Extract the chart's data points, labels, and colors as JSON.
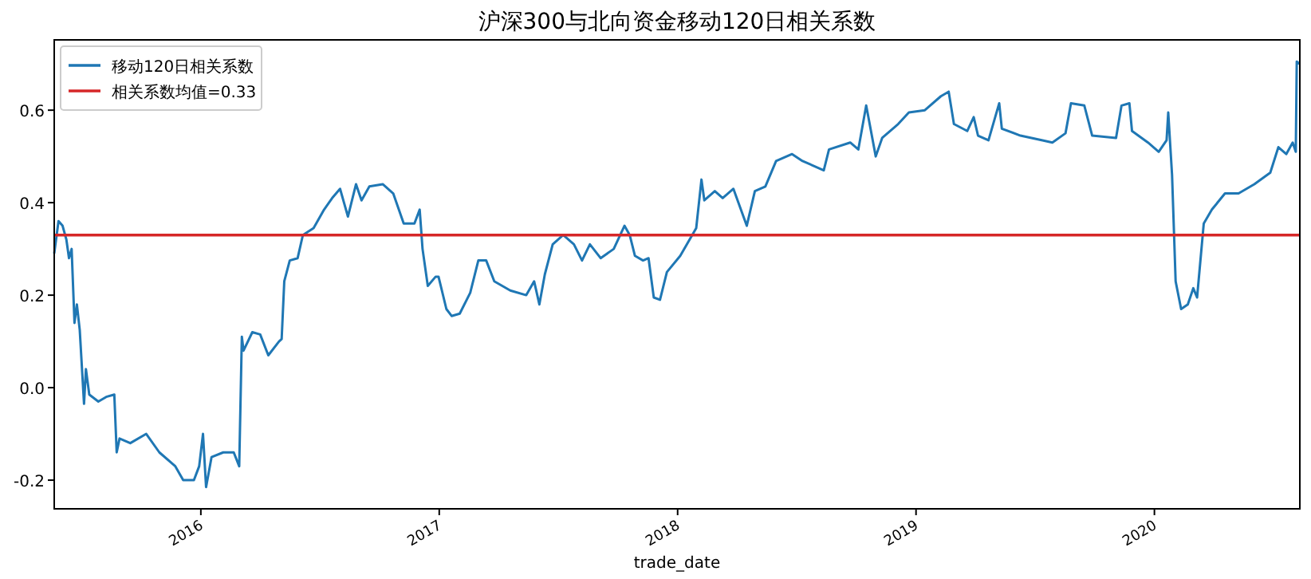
{
  "chart_data": {
    "type": "line",
    "title": "沪深300与北向资金移动120日相关系数",
    "xlabel": "trade_date",
    "xlim": [
      2015.385,
      2020.61
    ],
    "xticks": [
      2016,
      2017,
      2018,
      2019,
      2020
    ],
    "ylim": [
      -0.262,
      0.752
    ],
    "yticks": [
      -0.2,
      {
        "value": 0,
        "label": "0.0"
      },
      0.2,
      0.4,
      0.6
    ],
    "legend": "top left",
    "ref_lines": [
      {
        "axis": "y",
        "value": 0.33,
        "label": "相关系数均值=0.33",
        "color": "#d62728"
      }
    ],
    "series": [
      {
        "name": "移动120日相关系数",
        "color": "#1f77b4",
        "x": [
          2015.385,
          2015.403,
          2015.42,
          2015.436,
          2015.447,
          2015.458,
          2015.47,
          2015.48,
          2015.492,
          2015.51,
          2015.518,
          2015.532,
          2015.57,
          2015.603,
          2015.637,
          2015.647,
          2015.659,
          2015.704,
          2015.771,
          2015.826,
          2015.893,
          2015.926,
          2015.971,
          2015.993,
          2016.009,
          2016.022,
          2016.045,
          2016.094,
          2016.138,
          2016.161,
          2016.172,
          2016.179,
          2016.216,
          2016.249,
          2016.283,
          2016.328,
          2016.339,
          2016.35,
          2016.373,
          2016.406,
          2016.428,
          2016.473,
          2016.517,
          2016.551,
          2016.584,
          2016.617,
          2016.651,
          2016.674,
          2016.707,
          2016.763,
          2016.807,
          2016.851,
          2016.896,
          2016.918,
          2016.93,
          2016.952,
          2016.985,
          2016.997,
          2017.03,
          2017.052,
          2017.086,
          2017.13,
          2017.164,
          2017.197,
          2017.231,
          2017.298,
          2017.365,
          2017.398,
          2017.42,
          2017.443,
          2017.476,
          2017.52,
          2017.565,
          2017.599,
          2017.632,
          2017.677,
          2017.732,
          2017.777,
          2017.799,
          2017.821,
          2017.855,
          2017.878,
          2017.9,
          2017.926,
          2017.955,
          2018.011,
          2018.078,
          2018.1,
          2018.112,
          2018.156,
          2018.189,
          2018.234,
          2018.29,
          2018.324,
          2018.368,
          2018.413,
          2018.48,
          2018.524,
          2018.613,
          2018.635,
          2018.724,
          2018.758,
          2018.791,
          2018.831,
          2018.858,
          2018.925,
          2018.97,
          2019.037,
          2019.104,
          2019.137,
          2019.159,
          2019.215,
          2019.242,
          2019.26,
          2019.304,
          2019.349,
          2019.36,
          2019.438,
          2019.527,
          2019.572,
          2019.627,
          2019.65,
          2019.706,
          2019.739,
          2019.839,
          2019.862,
          2019.895,
          2019.906,
          2019.973,
          2020.018,
          2020.051,
          2020.058,
          2020.074,
          2020.089,
          2020.112,
          2020.14,
          2020.163,
          2020.179,
          2020.207,
          2020.241,
          2020.296,
          2020.353,
          2020.419,
          2020.486,
          2020.52,
          2020.553,
          2020.58,
          2020.593,
          2020.597,
          2020.61
        ],
        "values": [
          0.29,
          0.36,
          0.35,
          0.32,
          0.28,
          0.3,
          0.14,
          0.18,
          0.125,
          -0.035,
          0.04,
          -0.015,
          -0.03,
          -0.02,
          -0.015,
          -0.14,
          -0.11,
          -0.12,
          -0.1,
          -0.14,
          -0.17,
          -0.2,
          -0.2,
          -0.17,
          -0.1,
          -0.215,
          -0.15,
          -0.14,
          -0.14,
          -0.17,
          0.11,
          0.08,
          0.12,
          0.115,
          0.07,
          0.1,
          0.105,
          0.23,
          0.275,
          0.28,
          0.33,
          0.345,
          0.385,
          0.41,
          0.43,
          0.37,
          0.44,
          0.405,
          0.435,
          0.44,
          0.42,
          0.355,
          0.355,
          0.385,
          0.3,
          0.22,
          0.24,
          0.24,
          0.17,
          0.155,
          0.16,
          0.205,
          0.275,
          0.275,
          0.23,
          0.21,
          0.2,
          0.23,
          0.18,
          0.245,
          0.31,
          0.33,
          0.31,
          0.275,
          0.31,
          0.28,
          0.3,
          0.35,
          0.33,
          0.285,
          0.275,
          0.28,
          0.195,
          0.19,
          0.25,
          0.285,
          0.345,
          0.45,
          0.405,
          0.425,
          0.41,
          0.43,
          0.35,
          0.425,
          0.435,
          0.49,
          0.505,
          0.49,
          0.47,
          0.515,
          0.53,
          0.515,
          0.61,
          0.5,
          0.54,
          0.57,
          0.595,
          0.6,
          0.63,
          0.64,
          0.57,
          0.555,
          0.585,
          0.545,
          0.535,
          0.615,
          0.56,
          0.545,
          0.535,
          0.53,
          0.55,
          0.615,
          0.61,
          0.545,
          0.54,
          0.61,
          0.615,
          0.555,
          0.53,
          0.51,
          0.535,
          0.595,
          0.46,
          0.23,
          0.17,
          0.18,
          0.215,
          0.195,
          0.355,
          0.385,
          0.42,
          0.42,
          0.44,
          0.465,
          0.52,
          0.505,
          0.53,
          0.51,
          0.705,
          0.7
        ]
      }
    ]
  }
}
